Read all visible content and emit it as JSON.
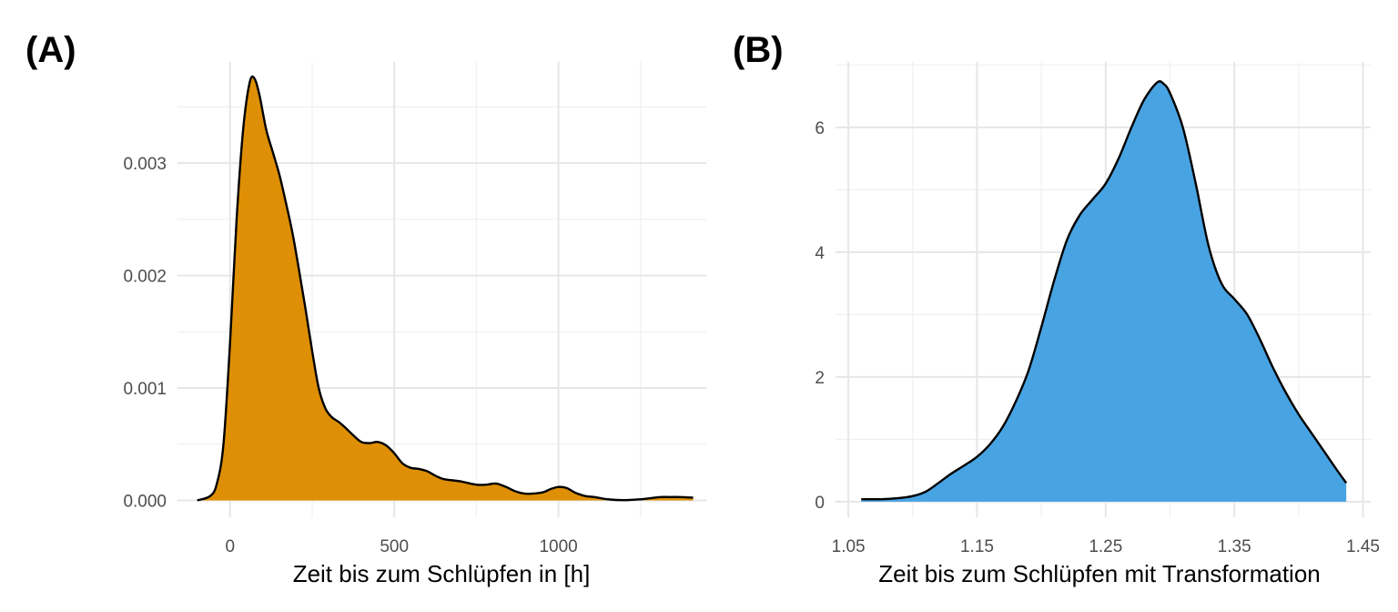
{
  "chart_data": [
    {
      "type": "area",
      "panel_label": "(A)",
      "title": "",
      "xlabel": "Zeit bis zum Schlüpfen in [h]",
      "ylabel": "",
      "fill_color": "#DE8F05",
      "xlim": [
        -160,
        1450
      ],
      "ylim": [
        -0.00015,
        0.0039
      ],
      "x_ticks": [
        0,
        500,
        1000
      ],
      "x_tick_labels": [
        "0",
        "500",
        "1000"
      ],
      "x_minor": [
        -250,
        250,
        750,
        1250
      ],
      "y_ticks": [
        0,
        0.001,
        0.002,
        0.003
      ],
      "y_tick_labels": [
        "0.000",
        "0.001",
        "0.002",
        "0.003"
      ],
      "y_minor": [
        0.0005,
        0.0015,
        0.0025,
        0.0035
      ],
      "grid": true,
      "x": [
        -100,
        -60,
        -40,
        -20,
        0,
        20,
        40,
        60,
        75,
        90,
        110,
        130,
        150,
        170,
        190,
        210,
        230,
        250,
        270,
        290,
        310,
        330,
        350,
        375,
        400,
        425,
        450,
        475,
        500,
        525,
        550,
        575,
        600,
        625,
        650,
        700,
        750,
        780,
        810,
        840,
        870,
        900,
        950,
        975,
        1000,
        1025,
        1050,
        1080,
        1110,
        1150,
        1200,
        1250,
        1280,
        1310,
        1340,
        1370,
        1410
      ],
      "values": [
        0,
        4e-05,
        0.00015,
        0.0005,
        0.0014,
        0.0025,
        0.0033,
        0.00372,
        0.00375,
        0.0036,
        0.0033,
        0.0031,
        0.0029,
        0.00265,
        0.00238,
        0.00205,
        0.0017,
        0.00133,
        0.001,
        0.00082,
        0.00074,
        0.0007,
        0.00065,
        0.00058,
        0.00052,
        0.00051,
        0.00052,
        0.00049,
        0.00042,
        0.00033,
        0.00029,
        0.00028,
        0.00026,
        0.00022,
        0.00019,
        0.00017,
        0.00014,
        0.00014,
        0.00015,
        0.00012,
        8e-05,
        6e-05,
        7e-05,
        0.0001,
        0.00012,
        0.00011,
        7e-05,
        4e-05,
        3e-05,
        1e-05,
        2e-06,
        1e-05,
        2e-05,
        3e-05,
        3e-05,
        3e-05,
        2.5e-05
      ]
    },
    {
      "type": "area",
      "panel_label": "(B)",
      "title": "",
      "xlabel": "Zeit bis zum Schlüpfen mit Transformation",
      "ylabel": "",
      "fill_color": "#48A3E2",
      "xlim": [
        1.04,
        1.456
      ],
      "ylim": [
        -0.25,
        7.05
      ],
      "x_ticks": [
        1.05,
        1.15,
        1.25,
        1.35,
        1.45
      ],
      "x_tick_labels": [
        "1.05",
        "1.15",
        "1.25",
        "1.35",
        "1.45"
      ],
      "x_minor": [
        1.1,
        1.2,
        1.3,
        1.4
      ],
      "y_ticks": [
        0,
        2,
        4,
        6
      ],
      "y_tick_labels": [
        "0",
        "2",
        "4",
        "6"
      ],
      "y_minor": [
        1,
        3,
        5,
        7
      ],
      "grid": true,
      "x": [
        1.06,
        1.075,
        1.09,
        1.1,
        1.11,
        1.12,
        1.13,
        1.14,
        1.15,
        1.16,
        1.17,
        1.18,
        1.19,
        1.2,
        1.21,
        1.22,
        1.23,
        1.24,
        1.25,
        1.26,
        1.27,
        1.28,
        1.29,
        1.295,
        1.3,
        1.31,
        1.32,
        1.33,
        1.34,
        1.35,
        1.36,
        1.37,
        1.38,
        1.39,
        1.4,
        1.41,
        1.42,
        1.43,
        1.437
      ],
      "values": [
        0.04,
        0.04,
        0.06,
        0.09,
        0.16,
        0.3,
        0.45,
        0.58,
        0.72,
        0.92,
        1.2,
        1.6,
        2.1,
        2.8,
        3.55,
        4.2,
        4.6,
        4.85,
        5.1,
        5.5,
        6.0,
        6.45,
        6.72,
        6.7,
        6.55,
        6.0,
        5.1,
        4.1,
        3.5,
        3.25,
        3.0,
        2.6,
        2.15,
        1.75,
        1.4,
        1.1,
        0.8,
        0.5,
        0.3
      ]
    }
  ]
}
